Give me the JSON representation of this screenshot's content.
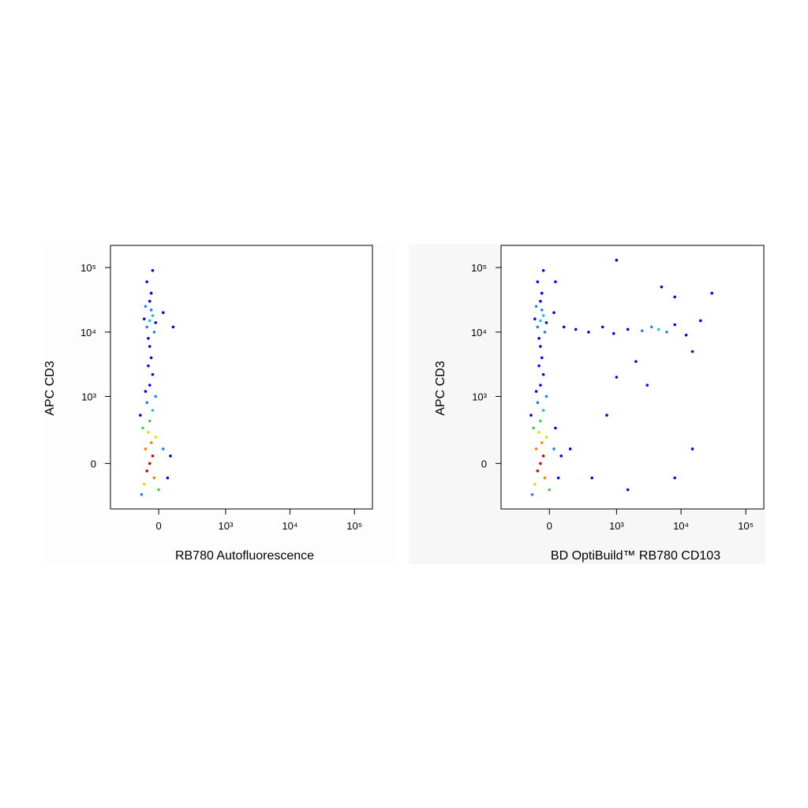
{
  "chart_data": [
    {
      "type": "scatter",
      "x_label": "RB780 Autofluorescence",
      "y_label": "APC CD3",
      "xscale": "biexponential",
      "yscale": "biexponential",
      "xlim": [
        -500,
        190000
      ],
      "ylim": [
        -450,
        220000
      ],
      "xticks": [
        0,
        {
          "value": 1000,
          "label": "10³"
        },
        {
          "value": 10000,
          "label": "10⁴"
        },
        {
          "value": 100000,
          "label": "10⁵"
        }
      ],
      "yticks": [
        0,
        {
          "value": 1000,
          "label": "10³"
        },
        {
          "value": 10000,
          "label": "10⁴"
        },
        {
          "value": 100000,
          "label": "10⁵"
        }
      ],
      "x": [
        -60,
        -40,
        -80,
        -50,
        -90,
        -30,
        -70,
        -100,
        -20,
        -60,
        -110,
        0,
        -40,
        -80,
        -20,
        -120,
        30,
        -60,
        -40,
        -70,
        -50,
        -90,
        60,
        80,
        -130,
        -60,
        -40,
        -80,
        -50,
        -30,
        -90,
        -60,
        -20,
        -100,
        -70,
        -50,
        -80,
        30,
        100,
        -40,
        -60
      ],
      "y": [
        0,
        50,
        -50,
        150,
        100,
        -100,
        250,
        -150,
        200,
        400,
        300,
        -200,
        600,
        800,
        1000,
        -250,
        100,
        1500,
        2200,
        3000,
        4000,
        1200,
        -100,
        50,
        500,
        15000,
        18000,
        12000,
        22000,
        10000,
        25000,
        30000,
        14000,
        16000,
        8000,
        40000,
        60000,
        20000,
        12000,
        90000,
        6000
      ],
      "colors": [
        "#e00000",
        "#e00000",
        "#e00000",
        "#ff8000",
        "#ff8000",
        "#ff8000",
        "#e0e000",
        "#e0e000",
        "#e0e000",
        "#40d040",
        "#40d040",
        "#40d040",
        "#20c0e0",
        "#2080ff",
        "#2080ff",
        "#2080ff",
        "#2080ff",
        "#0000ff",
        "#0000ff",
        "#0000ff",
        "#0000ff",
        "#0000ff",
        "#0000ff",
        "#0000ff",
        "#0000ff",
        "#20c0e0",
        "#20c0e0",
        "#2080ff",
        "#2080ff",
        "#2080ff",
        "#2080ff",
        "#0000ff",
        "#0000ff",
        "#0000ff",
        "#0000ff",
        "#0000ff",
        "#0000ff",
        "#0000ff",
        "#0000ff",
        "#0000ff",
        "#0000ff"
      ]
    },
    {
      "type": "scatter",
      "x_label": "BD OptiBuild™ RB780 CD103",
      "y_label": "APC CD3",
      "xscale": "biexponential",
      "yscale": "biexponential",
      "xlim": [
        -500,
        190000
      ],
      "ylim": [
        -450,
        220000
      ],
      "xticks": [
        0,
        {
          "value": 1000,
          "label": "10³"
        },
        {
          "value": 10000,
          "label": "10⁴"
        },
        {
          "value": 100000,
          "label": "10⁵"
        }
      ],
      "yticks": [
        0,
        {
          "value": 1000,
          "label": "10³"
        },
        {
          "value": 10000,
          "label": "10⁴"
        },
        {
          "value": 100000,
          "label": "10⁵"
        }
      ],
      "x": [
        -60,
        -40,
        -80,
        -50,
        -90,
        -30,
        -70,
        -100,
        -20,
        -60,
        -110,
        0,
        -40,
        -80,
        -20,
        -120,
        30,
        -60,
        -40,
        -70,
        -50,
        -90,
        60,
        80,
        -130,
        -60,
        -40,
        -80,
        -50,
        -30,
        -90,
        -60,
        -20,
        -100,
        -70,
        -50,
        -80,
        30,
        100,
        -40,
        -60,
        40,
        150,
        400,
        700,
        1500,
        8000,
        15000,
        200,
        350,
        600,
        900,
        1500,
        2500,
        3500,
        4500,
        6000,
        8000,
        12000,
        20000,
        30000,
        5000,
        2000,
        15000,
        1000,
        8000,
        3000,
        40,
        1000
      ],
      "y": [
        0,
        50,
        -50,
        150,
        100,
        -100,
        250,
        -150,
        200,
        400,
        300,
        -200,
        600,
        800,
        1000,
        -250,
        100,
        1500,
        2200,
        3000,
        4000,
        1200,
        -100,
        50,
        500,
        15000,
        18000,
        12000,
        22000,
        10000,
        25000,
        30000,
        14000,
        16000,
        8000,
        40000,
        60000,
        20000,
        12000,
        90000,
        6000,
        300,
        100,
        -100,
        500,
        -200,
        -100,
        100,
        11000,
        10000,
        12000,
        9500,
        11000,
        10500,
        12000,
        11000,
        10000,
        13000,
        9000,
        15000,
        40000,
        50000,
        3500,
        5000,
        2000,
        35000,
        1500,
        60000,
        130000
      ],
      "colors": [
        "#e00000",
        "#e00000",
        "#e00000",
        "#ff8000",
        "#ff8000",
        "#ff8000",
        "#e0e000",
        "#e0e000",
        "#e0e000",
        "#40d040",
        "#40d040",
        "#40d040",
        "#20c0e0",
        "#2080ff",
        "#2080ff",
        "#2080ff",
        "#2080ff",
        "#0000ff",
        "#0000ff",
        "#0000ff",
        "#0000ff",
        "#0000ff",
        "#0000ff",
        "#0000ff",
        "#0000ff",
        "#20c0e0",
        "#20c0e0",
        "#2080ff",
        "#2080ff",
        "#2080ff",
        "#2080ff",
        "#0000ff",
        "#0000ff",
        "#0000ff",
        "#0000ff",
        "#0000ff",
        "#0000ff",
        "#0000ff",
        "#0000ff",
        "#0000ff",
        "#0000ff",
        "#0000ff",
        "#0000ff",
        "#0000ff",
        "#0000ff",
        "#0000ff",
        "#0000ff",
        "#0000ff",
        "#0000ff",
        "#0000ff",
        "#0000ff",
        "#0000ff",
        "#0000ff",
        "#2080ff",
        "#2080ff",
        "#20c0e0",
        "#2080ff",
        "#0000ff",
        "#0000ff",
        "#0000ff",
        "#0000ff",
        "#0000ff",
        "#0000ff",
        "#0000ff",
        "#0000ff",
        "#0000ff",
        "#0000ff",
        "#0000ff",
        "#0000ff"
      ]
    }
  ]
}
